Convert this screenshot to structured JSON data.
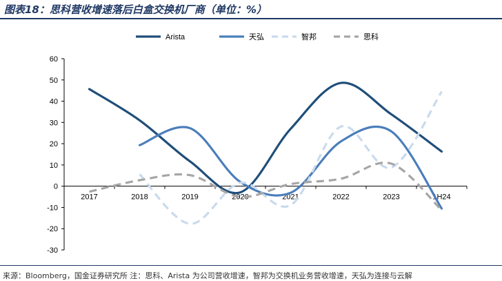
{
  "header": {
    "title": "图表18：思科营收增速落后白盒交换机厂商（单位：%）"
  },
  "footer": {
    "source": "来源：Bloomberg，国金证券研究所  注：思科、Arista 为公司营收增速，智邦为交换机业务营收增速，天弘为连接与云解"
  },
  "chart_data": {
    "type": "line",
    "title": "",
    "xlabel": "",
    "ylabel": "",
    "categories": [
      "2017",
      "2018",
      "2019",
      "2020",
      "2021",
      "2022",
      "2023",
      "1H24"
    ],
    "ylim": [
      -30,
      60
    ],
    "yticks": [
      -30,
      -20,
      -10,
      0,
      10,
      20,
      30,
      40,
      50,
      60
    ],
    "grid": false,
    "legend_position": "top",
    "series": [
      {
        "name": "Arista",
        "color": "#1f4e79",
        "dash": "solid",
        "values": [
          45.7,
          31.0,
          11.7,
          -2.9,
          27.0,
          48.6,
          33.8,
          16.3
        ]
      },
      {
        "name": "天弘",
        "color": "#4a7ebb",
        "dash": "solid",
        "values": [
          null,
          19.3,
          27.3,
          2.0,
          -3.1,
          21.1,
          25.8,
          -10.5
        ]
      },
      {
        "name": "智邦",
        "color": "#c9daed",
        "dash": "dashed",
        "values": [
          null,
          5.6,
          -17.7,
          1.6,
          -8.9,
          28.1,
          8.8,
          44.5
        ]
      },
      {
        "name": "思科",
        "color": "#a6a6a6",
        "dash": "dashed",
        "values": [
          -2.6,
          2.8,
          5.2,
          -5.0,
          1.0,
          3.5,
          10.6,
          -11.3
        ]
      }
    ]
  }
}
